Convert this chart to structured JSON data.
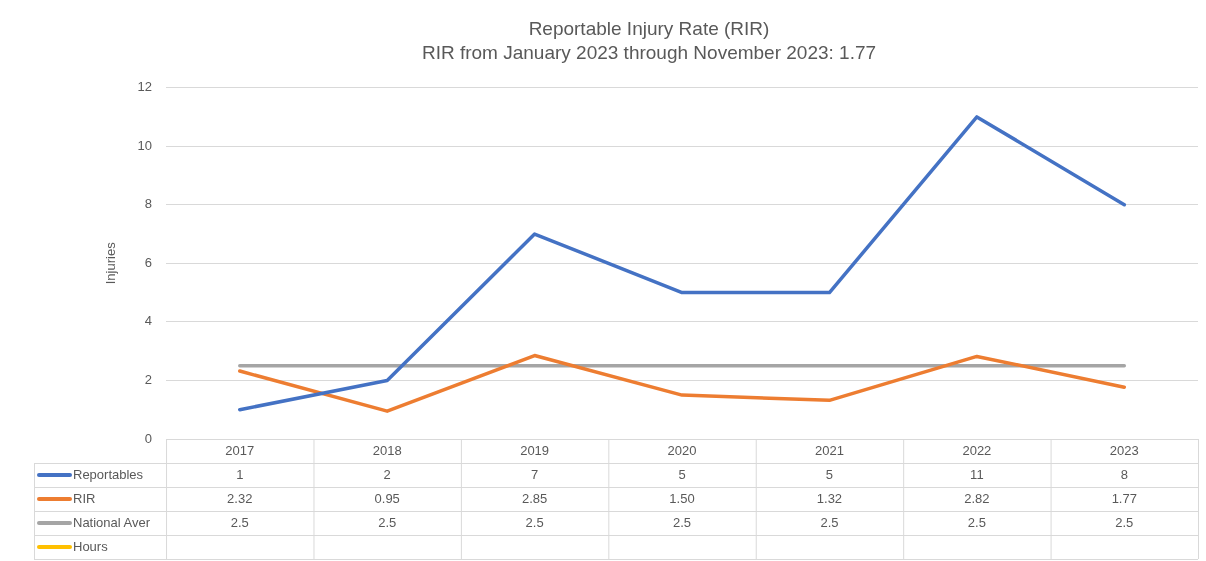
{
  "chart_data": {
    "type": "line",
    "title": "Reportable Injury Rate (RIR)",
    "subtitle": "RIR from January 2023 through November 2023: 1.77",
    "ylabel": "Injuries",
    "categories": [
      "2017",
      "2018",
      "2019",
      "2020",
      "2021",
      "2022",
      "2023"
    ],
    "series": [
      {
        "name": "Reportables",
        "color": "#4472c4",
        "values": [
          1,
          2,
          7,
          5,
          5,
          11,
          8
        ],
        "value_labels": [
          "1",
          "2",
          "7",
          "5",
          "5",
          "11",
          "8"
        ]
      },
      {
        "name": "RIR",
        "color": "#ed7d31",
        "values": [
          2.32,
          0.95,
          2.85,
          1.5,
          1.32,
          2.82,
          1.77
        ],
        "value_labels": [
          "2.32",
          "0.95",
          "2.85",
          "1.50",
          "1.32",
          "2.82",
          "1.77"
        ]
      },
      {
        "name": "National Aver",
        "color": "#a5a5a5",
        "values": [
          2.5,
          2.5,
          2.5,
          2.5,
          2.5,
          2.5,
          2.5
        ],
        "value_labels": [
          "2.5",
          "2.5",
          "2.5",
          "2.5",
          "2.5",
          "2.5",
          "2.5"
        ]
      },
      {
        "name": "Hours",
        "color": "#ffc000",
        "values": [
          null,
          null,
          null,
          null,
          null,
          null,
          null
        ],
        "value_labels": [
          null,
          null,
          null,
          null,
          null,
          null,
          null
        ]
      }
    ],
    "ylim": [
      0,
      12
    ],
    "yticks": [
      0,
      2,
      4,
      6,
      8,
      10,
      12
    ],
    "grid": "y",
    "legend": "bottom",
    "marker": "none",
    "line_style": "solid"
  }
}
